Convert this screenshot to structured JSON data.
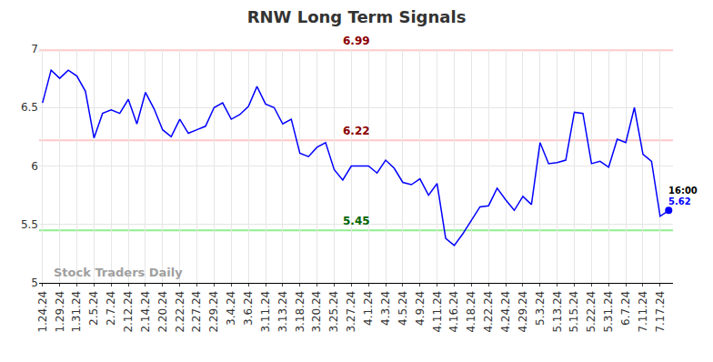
{
  "chart_data": {
    "type": "line",
    "title": "RNW Long Term Signals",
    "categories": [
      "1.24.24",
      null,
      "1.29.24",
      null,
      "1.31.24",
      null,
      "2.5.24",
      null,
      "2.7.24",
      null,
      "2.12.24",
      null,
      "2.14.24",
      null,
      "2.20.24",
      null,
      "2.22.24",
      null,
      "2.27.24",
      null,
      "2.29.24",
      null,
      "3.4.24",
      null,
      "3.6.24",
      null,
      "3.11.24",
      null,
      "3.13.24",
      null,
      "3.18.24",
      null,
      "3.20.24",
      null,
      "3.25.24",
      null,
      "3.27.24",
      null,
      "4.1.24",
      null,
      "4.3.24",
      null,
      "4.5.24",
      null,
      "4.9.24",
      null,
      "4.11.24",
      null,
      "4.16.24",
      null,
      "4.18.24",
      null,
      "4.22.24",
      null,
      "4.24.24",
      null,
      "4.29.24",
      null,
      "5.3.24",
      null,
      "5.13.24",
      null,
      "5.15.24",
      null,
      "5.22.24",
      null,
      "5.31.24",
      null,
      "6.7.24",
      null,
      "7.11.24",
      null,
      "7.17.24",
      null
    ],
    "values": [
      6.54,
      6.82,
      6.75,
      6.82,
      6.77,
      6.64,
      6.24,
      6.45,
      6.48,
      6.45,
      6.57,
      6.36,
      6.63,
      6.49,
      6.31,
      6.25,
      6.4,
      6.28,
      6.31,
      6.34,
      6.5,
      6.54,
      6.4,
      6.44,
      6.51,
      6.68,
      6.53,
      6.5,
      6.36,
      6.4,
      6.11,
      6.08,
      6.16,
      6.2,
      5.97,
      5.88,
      6.0,
      6.0,
      6.0,
      5.94,
      6.05,
      5.98,
      5.86,
      5.84,
      5.89,
      5.75,
      5.85,
      5.38,
      5.32,
      5.42,
      5.53,
      5.65,
      5.66,
      5.81,
      5.71,
      5.62,
      5.74,
      5.67,
      6.2,
      6.02,
      6.03,
      6.05,
      6.46,
      6.45,
      6.02,
      6.04,
      5.99,
      6.23,
      6.2,
      6.5,
      6.1,
      6.04,
      5.57,
      5.62
    ],
    "color": "#0000ff",
    "ylim": [
      5,
      7
    ],
    "yticks": [
      5,
      5.5,
      6,
      6.5,
      7
    ],
    "grid": true,
    "reference_lines": [
      {
        "value": 6.99,
        "color": "#ffc8c8",
        "label_color": "#8b0000"
      },
      {
        "value": 6.22,
        "color": "#ffc8c8",
        "label_color": "#8b0000"
      },
      {
        "value": 5.45,
        "color": "#90ee90",
        "label_color": "#006400"
      }
    ],
    "last_time": "16:00",
    "watermark": "Stock Traders Daily"
  }
}
